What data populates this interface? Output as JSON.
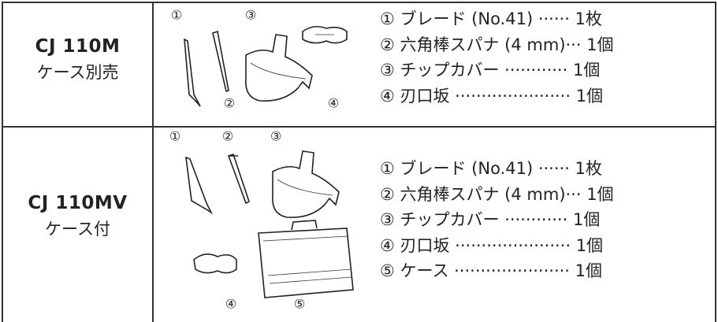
{
  "rows": [
    {
      "model": "CJ 110M",
      "note": "ケース別売",
      "items": [
        "① ブレード (No.41) ······ 1枚",
        "② 六角棒スパナ (4 mm)··· 1個",
        "③ チップカバー ············ 1個",
        "④ 刃口坂 ······················ 1個"
      ],
      "illustration_labels": [
        "①",
        "②",
        "③",
        "④"
      ]
    },
    {
      "model": "CJ 110MV",
      "note": "ケース付",
      "items": [
        "① ブレード (No.41) ······ 1枚",
        "② 六角棒スパナ (4 mm)··· 1個",
        "③ チップカバー ············ 1個",
        "④ 刃口坂 ······················ 1個",
        "⑤ ケース ······················ 1個"
      ],
      "illustration_labels": [
        "①",
        "②",
        "③",
        "④",
        "⑤"
      ]
    }
  ]
}
